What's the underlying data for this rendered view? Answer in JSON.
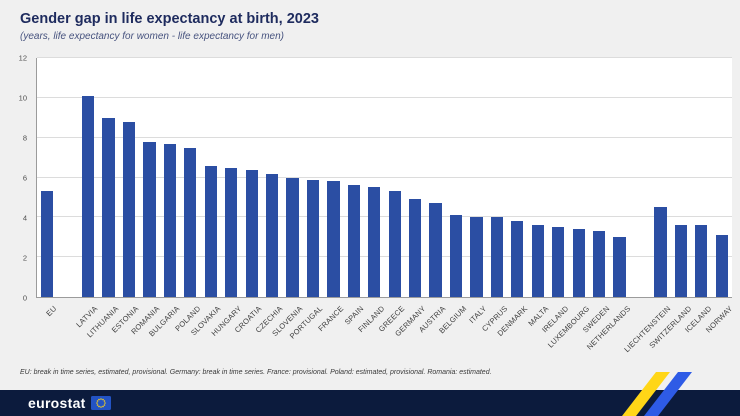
{
  "header": {
    "title": "Gender gap in life expectancy at birth, 2023",
    "subtitle": "(years, life expectancy for women - life expectancy for men)"
  },
  "footnote": "EU: break in time series, estimated, provisional. Germany: break in time series. France: provisional. Poland: estimated, provisional. Romania: estimated.",
  "footer": {
    "logo_text": "eurostat"
  },
  "colors": {
    "bar": "#2b4ea3",
    "title": "#1e2b5e",
    "footer_bg": "#0c1b3d",
    "ribbon_yellow": "#ffd617",
    "ribbon_blue": "#2e5be6"
  },
  "chart_data": {
    "type": "bar",
    "title": "Gender gap in life expectancy at birth, 2023",
    "subtitle": "(years, life expectancy for women - life expectancy for men)",
    "xlabel": "",
    "ylabel": "years",
    "ylim": [
      0,
      12
    ],
    "yticks": [
      0,
      2,
      4,
      6,
      8,
      10,
      12
    ],
    "grid": true,
    "legend": false,
    "groups": [
      {
        "categories": [
          "EU"
        ],
        "values": [
          5.3
        ]
      },
      {
        "categories": [
          "LATVIA",
          "LITHUANIA",
          "ESTONIA",
          "ROMANIA",
          "BULGARIA",
          "POLAND",
          "SLOVAKIA",
          "HUNGARY",
          "CROATIA",
          "CZECHIA",
          "SLOVENIA",
          "PORTUGAL",
          "FRANCE",
          "SPAIN",
          "FINLAND",
          "GREECE",
          "GERMANY",
          "AUSTRIA",
          "BELGIUM",
          "ITALY",
          "CYPRUS",
          "DENMARK",
          "MALTA",
          "IRELAND",
          "LUXEMBOURG",
          "SWEDEN",
          "NETHERLANDS"
        ],
        "values": [
          10.1,
          9.0,
          8.8,
          7.8,
          7.7,
          7.5,
          6.6,
          6.5,
          6.4,
          6.2,
          6.0,
          5.9,
          5.8,
          5.6,
          5.5,
          5.3,
          4.9,
          4.7,
          4.1,
          4.0,
          4.0,
          3.8,
          3.6,
          3.5,
          3.4,
          3.3,
          3.0
        ]
      },
      {
        "categories": [
          "LIECHTENSTEIN",
          "SWITZERLAND",
          "ICELAND",
          "NORWAY"
        ],
        "values": [
          4.5,
          3.6,
          3.6,
          3.1
        ]
      }
    ]
  }
}
